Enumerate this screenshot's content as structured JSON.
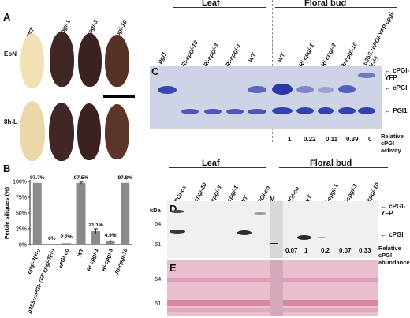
{
  "panelA": {
    "letter": "A",
    "cols": [
      "WT",
      "Ri-cpgi-1",
      "Ri-cpgi-3",
      "Ri-cpgi-10"
    ],
    "rows": [
      "EoN",
      "8h-L"
    ],
    "colors": {
      "wt_eon": "#f0e1b4",
      "wt_8h": "#e9d6a8",
      "ri": "#3e2422",
      "ri10": "#5a3428"
    }
  },
  "panelB": {
    "letter": "B",
    "chart_data": {
      "type": "bar",
      "ylabel": "Fertile siliques (%)",
      "ylim": [
        0,
        100
      ],
      "yticks": [
        "0%",
        "25%",
        "50%",
        "75%",
        "100%"
      ],
      "categories": [
        "cpgi-3(+/-)",
        "p35S::cPGI-YFP cpgi-3(-/-)",
        "cPGI-co",
        "WT",
        "Ri-cpgi-1",
        "Ri-cpgi-3",
        "Ri-cpgi-10"
      ],
      "values": [
        97.7,
        0,
        2.2,
        97.5,
        21.1,
        4.9,
        97.8
      ],
      "labels": [
        "97.7%",
        "0%",
        "2.2%",
        "97.5%",
        "21.1%",
        "4.9%",
        "97.8%"
      ],
      "error": [
        0,
        0,
        0,
        1.5,
        4,
        1,
        0
      ],
      "bar_color": "#8a8a8a"
    }
  },
  "panelC": {
    "letter": "C",
    "group_leaf": "Leaf",
    "group_floral": "Floral bud",
    "lanes": [
      "pgi1",
      "Ri-cpgi-10",
      "Ri-cpgi-3",
      "Ri-cpgi-1",
      "WT",
      "WT",
      "Ri-cpgi-1",
      "Ri-cpgi-3",
      "Ri-cpgi-10",
      "p35S::cPGI-YFP cpgi-3(-/-)"
    ],
    "right_labels": [
      "cPGI-YFP",
      "cPGI",
      "PGI1"
    ],
    "activity": [
      "1",
      "0.22",
      "0.11",
      "0.39",
      "0"
    ],
    "activity_label_1": "Relative cPGI",
    "activity_label_2": "activity"
  },
  "panelD": {
    "letter": "D",
    "group_leaf": "Leaf",
    "group_floral": "Floral bud",
    "kda": "kDa",
    "markers": [
      "64",
      "51"
    ],
    "lanes": [
      "cPGI-ox",
      "Ri-cpgi-10",
      "Ri-cpgi-3",
      "Ri-cpgi-1",
      "WT",
      "cPGI-co",
      "M",
      "cPGI-co",
      "WT",
      "Ri-cpgi-1",
      "Ri-cpgi-3",
      "Ri-cpgi-10"
    ],
    "right_labels": [
      "cPGI-YFP",
      "cPGI"
    ],
    "abundance": [
      "0.07",
      "1",
      "0.2",
      "0.07",
      "0.33"
    ],
    "abundance_label_1": "Relative cPGI",
    "abundance_label_2": "abundance"
  },
  "panelE": {
    "letter": "E",
    "markers": [
      "64",
      "51"
    ]
  }
}
